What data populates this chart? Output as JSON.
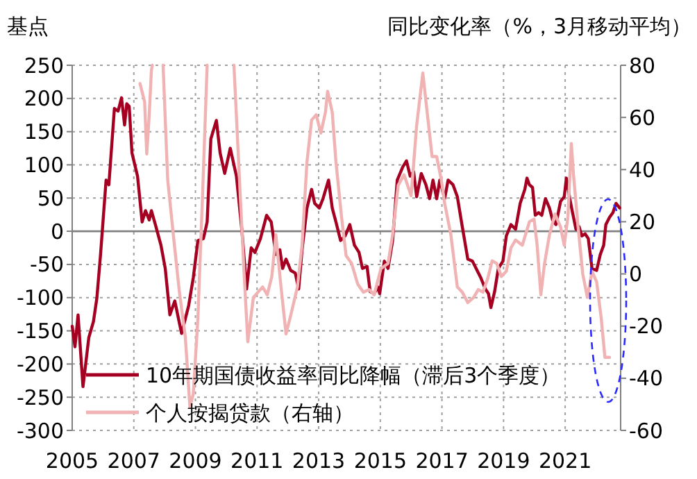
{
  "chart_data": {
    "type": "line",
    "ylabel": "基点",
    "y2label": "同比变化率（%，3月移动平均）",
    "xlim": [
      2005,
      2022.8
    ],
    "xticks": [
      2005,
      2007,
      2009,
      2011,
      2013,
      2015,
      2017,
      2019,
      2021
    ],
    "ylim": [
      -300,
      250
    ],
    "yticks": [
      -300,
      -250,
      -200,
      -150,
      -100,
      -50,
      0,
      50,
      100,
      150,
      200,
      250
    ],
    "y2lim": [
      -60,
      80
    ],
    "y2ticks": [
      -60,
      -40,
      -20,
      0,
      20,
      40,
      60,
      80
    ],
    "grid": true,
    "legend": "bottom left",
    "line_style": "solid",
    "marker": "none",
    "ref_lines": [
      {
        "axis": "y",
        "value": 0,
        "color": "#808080",
        "line_style": "solid"
      }
    ],
    "series": [
      {
        "name": "10年期国债收益率同比降幅（滞后3个季度）",
        "color": "#a50021",
        "x": [
          2005.0,
          2005.09,
          2005.19,
          2005.35,
          2005.54,
          2005.69,
          2005.8,
          2005.92,
          2006.1,
          2006.19,
          2006.37,
          2006.49,
          2006.6,
          2006.7,
          2006.77,
          2006.85,
          2006.94,
          2007.12,
          2007.27,
          2007.38,
          2007.5,
          2007.57,
          2007.7,
          2007.88,
          2008.02,
          2008.17,
          2008.33,
          2008.55,
          2008.78,
          2008.93,
          2009.08,
          2009.26,
          2009.38,
          2009.5,
          2009.68,
          2009.8,
          2009.95,
          2010.13,
          2010.33,
          2010.51,
          2010.66,
          2010.81,
          2010.93,
          2011.11,
          2011.31,
          2011.46,
          2011.61,
          2011.74,
          2011.83,
          2011.94,
          2012.09,
          2012.24,
          2012.35,
          2012.46,
          2012.62,
          2012.77,
          2012.87,
          2013.02,
          2013.14,
          2013.32,
          2013.44,
          2013.56,
          2013.71,
          2013.86,
          2014.01,
          2014.16,
          2014.31,
          2014.42,
          2014.57,
          2014.67,
          2014.8,
          2014.92,
          2014.98,
          2015.13,
          2015.25,
          2015.4,
          2015.55,
          2015.73,
          2015.85,
          2015.97,
          2016.08,
          2016.18,
          2016.33,
          2016.48,
          2016.6,
          2016.71,
          2016.83,
          2016.93,
          2017.09,
          2017.2,
          2017.36,
          2017.5,
          2017.66,
          2017.84,
          2017.99,
          2018.11,
          2018.26,
          2018.41,
          2018.51,
          2018.59,
          2018.71,
          2018.83,
          2018.98,
          2019.09,
          2019.24,
          2019.39,
          2019.54,
          2019.69,
          2019.76,
          2019.84,
          2019.94,
          2020.03,
          2020.14,
          2020.24,
          2020.36,
          2020.49,
          2020.59,
          2020.7,
          2020.85,
          2020.97,
          2021.04,
          2021.15,
          2021.24,
          2021.35,
          2021.45,
          2021.54,
          2021.65,
          2021.75,
          2021.87,
          2022.02,
          2022.14,
          2022.25,
          2022.32,
          2022.44,
          2022.55,
          2022.65,
          2022.77
        ],
        "values": [
          -143,
          -174,
          -126,
          -234,
          -160,
          -136,
          -101,
          -35,
          77,
          70,
          185,
          181,
          201,
          160,
          192,
          188,
          118,
          83,
          14,
          31,
          17,
          31,
          10,
          -21,
          -56,
          -126,
          -105,
          -154,
          -112,
          -70,
          -14,
          -11,
          14,
          139,
          167,
          118,
          87,
          125,
          83,
          0,
          -87,
          -25,
          -32,
          -11,
          24,
          14,
          -35,
          -28,
          -56,
          -42,
          -59,
          -63,
          -87,
          -28,
          35,
          63,
          42,
          35,
          49,
          77,
          35,
          14,
          -14,
          -7,
          10,
          -21,
          -32,
          -56,
          -53,
          -91,
          -94,
          -84,
          -94,
          -45,
          -56,
          -14,
          77,
          97,
          106,
          83,
          90,
          52,
          87,
          70,
          49,
          77,
          49,
          77,
          49,
          77,
          70,
          52,
          7,
          -42,
          -45,
          -56,
          -70,
          -87,
          -94,
          -115,
          -91,
          -56,
          -45,
          -7,
          10,
          3,
          42,
          63,
          80,
          70,
          66,
          24,
          28,
          24,
          49,
          35,
          17,
          10,
          45,
          52,
          80,
          49,
          28,
          3,
          7,
          -7,
          -4,
          -11,
          -56,
          -59,
          -35,
          -21,
          10,
          21,
          28,
          42,
          35
        ]
      },
      {
        "name": "个人按揭贷款（右轴）",
        "color": "#f0b2b2",
        "axis": "y2",
        "x": [
          2007.2,
          2007.35,
          2007.42,
          2007.5,
          2007.57,
          2007.6,
          2007.8,
          2007.95,
          2008.1,
          2008.3,
          2008.48,
          2008.67,
          2008.82,
          2008.93,
          2009.08,
          2009.23,
          2009.38,
          2009.8,
          2010.25,
          2010.43,
          2010.58,
          2010.7,
          2010.88,
          2011.03,
          2011.18,
          2011.33,
          2011.48,
          2011.61,
          2011.76,
          2011.94,
          2012.09,
          2012.31,
          2012.46,
          2012.62,
          2012.77,
          2012.92,
          2013.07,
          2013.22,
          2013.29,
          2013.44,
          2013.56,
          2013.74,
          2013.89,
          2014.07,
          2014.27,
          2014.45,
          2014.64,
          2014.8,
          2015.02,
          2015.25,
          2015.4,
          2015.58,
          2015.77,
          2016.0,
          2016.18,
          2016.38,
          2016.53,
          2016.68,
          2016.83,
          2016.98,
          2017.09,
          2017.29,
          2017.5,
          2017.66,
          2017.84,
          2018.03,
          2018.18,
          2018.33,
          2018.48,
          2018.63,
          2018.78,
          2018.93,
          2019.09,
          2019.24,
          2019.39,
          2019.61,
          2019.84,
          2019.99,
          2020.09,
          2020.21,
          2020.33,
          2020.49,
          2020.67,
          2020.85,
          2020.97,
          2021.09,
          2021.2,
          2021.27,
          2021.42,
          2021.57,
          2021.72,
          2021.87,
          2022.02,
          2022.17,
          2022.29,
          2022.44
        ],
        "values": [
          73,
          66,
          46,
          61,
          78,
          80,
          null,
          80,
          36,
          13,
          -7,
          -24,
          -51,
          -46,
          -17,
          30,
          80,
          null,
          80,
          36,
          0,
          -26,
          -9,
          -7,
          -5,
          -8,
          -1,
          15,
          -3,
          -23,
          -16,
          -5,
          11,
          43,
          59,
          61,
          54,
          62,
          70,
          62,
          43,
          22,
          7,
          4,
          -4,
          -7,
          -6,
          -8,
          2,
          4,
          15,
          34,
          38,
          30,
          57,
          77,
          61,
          45,
          45,
          36,
          27,
          15,
          -5,
          -7,
          -11,
          -9,
          -6,
          -7,
          -2,
          5,
          4,
          -1,
          1,
          10,
          13,
          11,
          20,
          21,
          11,
          -8,
          4,
          15,
          23,
          18,
          11,
          22,
          50,
          38,
          18,
          0,
          -9,
          1,
          -3,
          -17,
          -32,
          -32
        ]
      }
    ]
  }
}
